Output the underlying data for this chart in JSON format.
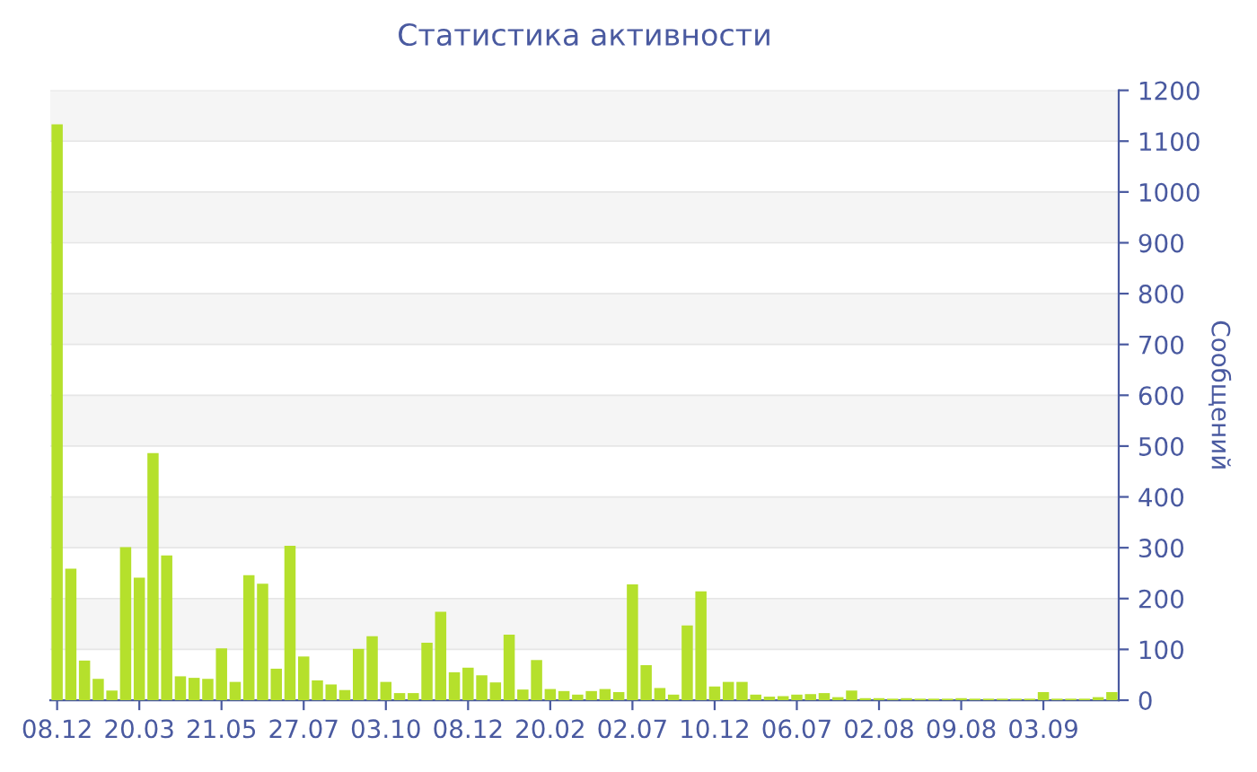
{
  "chart_data": {
    "type": "bar",
    "title": "Статистика активности",
    "ylabel": "Сообщений",
    "categories": [
      "08.12",
      null,
      null,
      null,
      null,
      null,
      "20.03",
      null,
      null,
      null,
      null,
      null,
      "21.05",
      null,
      null,
      null,
      null,
      null,
      "27.07",
      null,
      null,
      null,
      null,
      null,
      "03.10",
      null,
      null,
      null,
      null,
      null,
      "08.12",
      null,
      null,
      null,
      null,
      null,
      "20.02",
      null,
      null,
      null,
      null,
      null,
      "02.07",
      null,
      null,
      null,
      null,
      null,
      "10.12",
      null,
      null,
      null,
      null,
      null,
      "06.07",
      null,
      null,
      null,
      null,
      null,
      "02.08",
      null,
      null,
      null,
      null,
      null,
      "09.08",
      null,
      null,
      null,
      null,
      null,
      "03.09",
      null,
      null,
      null,
      null,
      null
    ],
    "values": [
      1133,
      259,
      78,
      42,
      19,
      301,
      241,
      486,
      285,
      47,
      44,
      42,
      102,
      36,
      246,
      229,
      62,
      304,
      86,
      39,
      31,
      20,
      101,
      126,
      36,
      14,
      14,
      113,
      174,
      55,
      64,
      49,
      35,
      129,
      21,
      79,
      22,
      18,
      11,
      18,
      22,
      16,
      228,
      69,
      24,
      11,
      147,
      214,
      27,
      36,
      36,
      11,
      7,
      8,
      11,
      12,
      14,
      6,
      19,
      4,
      4,
      3,
      4,
      3,
      3,
      3,
      4,
      3,
      3,
      3,
      3,
      3,
      16,
      3,
      3,
      3,
      6,
      16
    ],
    "color": "#b5e02c",
    "ylim": [
      0,
      1200
    ],
    "yticks": [
      0,
      100,
      200,
      300,
      400,
      500,
      600,
      700,
      800,
      900,
      1000,
      1100,
      1200
    ],
    "grid": "y"
  }
}
